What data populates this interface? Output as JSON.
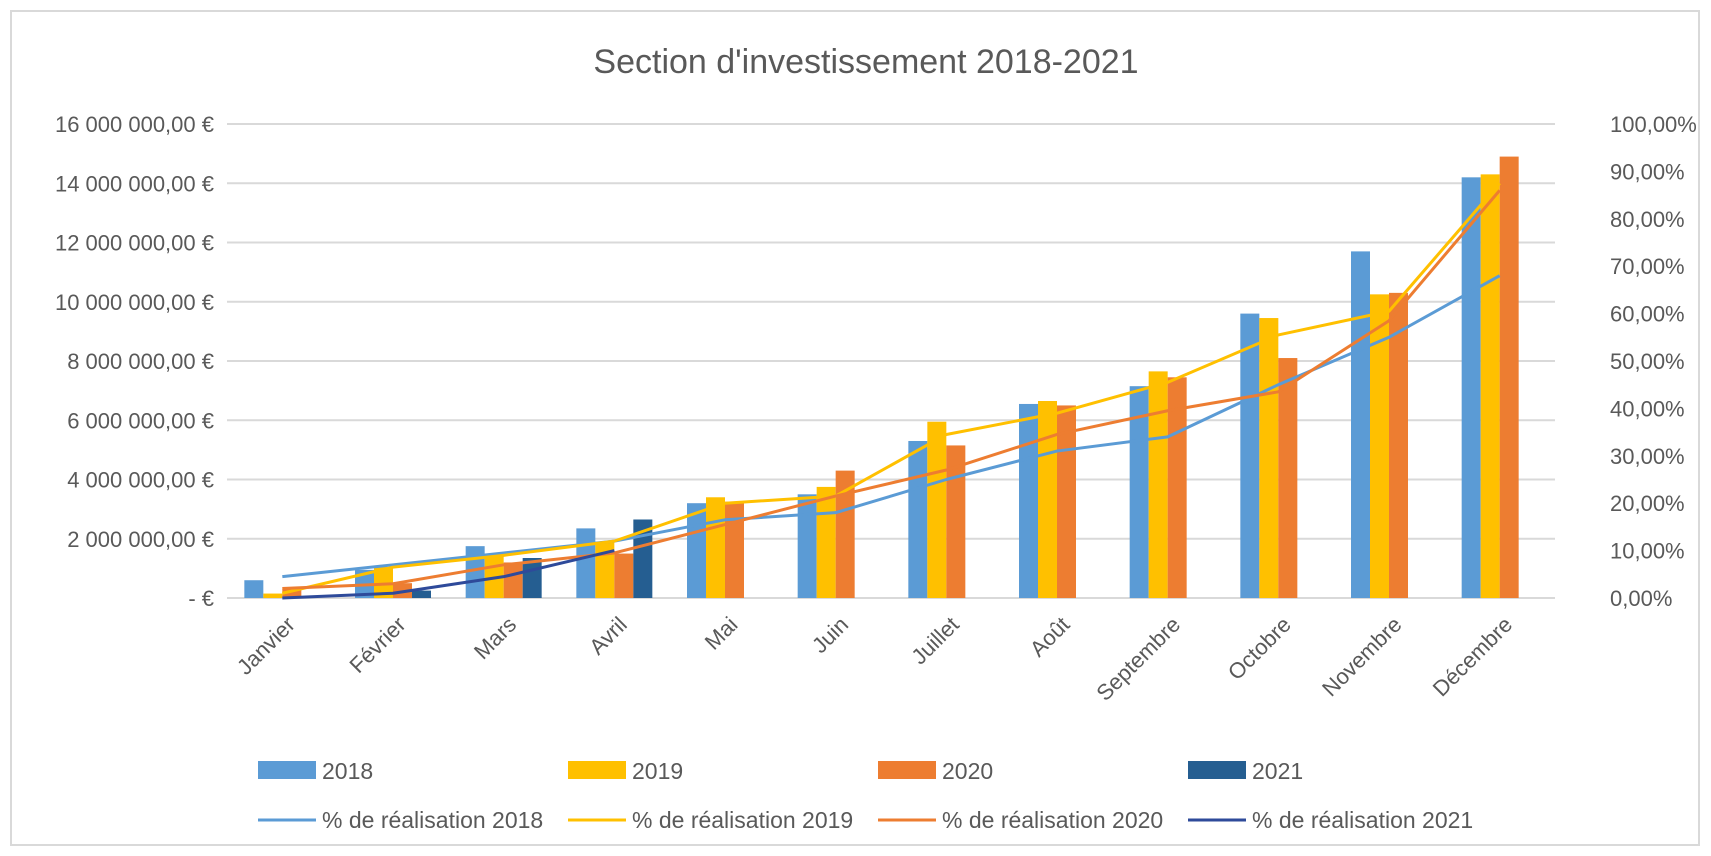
{
  "chart_data": {
    "type": "bar",
    "title": "Section d'investissement 2018-2021",
    "categories": [
      "Janvier",
      "Février",
      "Mars",
      "Avril",
      "Mai",
      "Juin",
      "Juillet",
      "Août",
      "Septembre",
      "Octobre",
      "Novembre",
      "Décembre"
    ],
    "ylim": [
      0,
      16000000
    ],
    "y2lim": [
      0,
      1
    ],
    "y_ticks": [
      "-  €",
      "2 000 000,00 €",
      "4 000 000,00 €",
      "6 000 000,00 €",
      "8 000 000,00 €",
      "10 000 000,00 €",
      "12 000 000,00 €",
      "14 000 000,00 €",
      "16 000 000,00 €"
    ],
    "y2_ticks": [
      "0,00%",
      "10,00%",
      "20,00%",
      "30,00%",
      "40,00%",
      "50,00%",
      "60,00%",
      "70,00%",
      "80,00%",
      "90,00%",
      "100,00%"
    ],
    "grid": true,
    "legend_position": "bottom",
    "series": [
      {
        "name": "2018",
        "type": "bar",
        "axis": "left",
        "color": "#5b9bd5",
        "values": [
          600000,
          950000,
          1750000,
          2350000,
          3200000,
          3500000,
          5300000,
          6550000,
          7150000,
          9600000,
          11700000,
          14200000
        ]
      },
      {
        "name": "2019",
        "type": "bar",
        "axis": "left",
        "color": "#ffc000",
        "values": [
          150000,
          1050000,
          1450000,
          1900000,
          3400000,
          3750000,
          5950000,
          6650000,
          7650000,
          9450000,
          10250000,
          14300000
        ]
      },
      {
        "name": "2020",
        "type": "bar",
        "axis": "left",
        "color": "#ed7d31",
        "values": [
          300000,
          500000,
          1200000,
          1500000,
          3250000,
          4300000,
          5150000,
          6500000,
          7450000,
          8100000,
          10300000,
          14900000
        ]
      },
      {
        "name": "2021",
        "type": "bar",
        "axis": "left",
        "color": "#255e91",
        "values": [
          null,
          250000,
          1350000,
          2650000,
          null,
          null,
          null,
          null,
          null,
          null,
          null,
          null
        ]
      },
      {
        "name": "% de réalisation 2018",
        "type": "line",
        "axis": "right",
        "color": "#5b9bd5",
        "values": [
          0.045,
          0.07,
          0.095,
          0.12,
          0.165,
          0.18,
          0.25,
          0.31,
          0.34,
          0.45,
          0.55,
          0.68
        ]
      },
      {
        "name": "% de réalisation 2019",
        "type": "line",
        "axis": "right",
        "color": "#ffc000",
        "values": [
          0.01,
          0.065,
          0.09,
          0.12,
          0.2,
          0.215,
          0.345,
          0.39,
          0.455,
          0.555,
          0.605,
          0.875
        ]
      },
      {
        "name": "% de réalisation 2020",
        "type": "line",
        "axis": "right",
        "color": "#ed7d31",
        "values": [
          0.02,
          0.03,
          0.07,
          0.095,
          0.155,
          0.215,
          0.27,
          0.345,
          0.395,
          0.435,
          0.585,
          0.86
        ]
      },
      {
        "name": "% de réalisation 2021",
        "type": "line",
        "axis": "right",
        "color": "#2e4a9a",
        "values": [
          0.0,
          0.01,
          0.045,
          0.1,
          null,
          null,
          null,
          null,
          null,
          null,
          null,
          null
        ]
      }
    ]
  }
}
